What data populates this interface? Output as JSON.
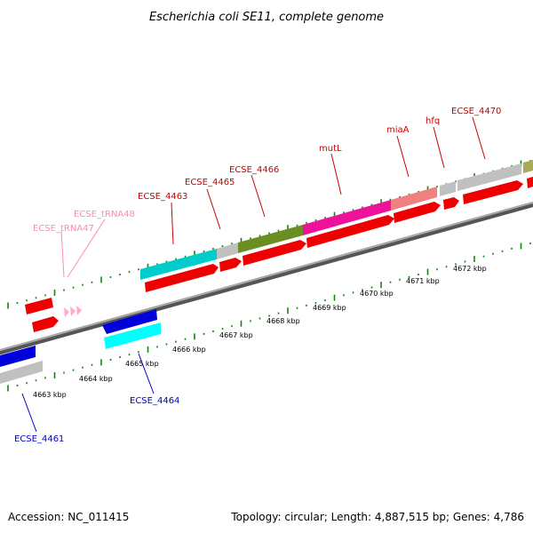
{
  "title": "Escherichia coli SE11, complete genome",
  "footer": {
    "accession": "Accession: NC_011415",
    "summary": "Topology: circular; Length: 4,887,515 bp; Genes: 4,786"
  },
  "colors": {
    "red": "#ff0000",
    "blue": "#0000ff",
    "cyan": "#00cccc",
    "gray": "#c0c0c0",
    "olive": "#6b8e23",
    "magenta": "#ee1199",
    "salmon": "#f08080",
    "khaki": "#aaaa55",
    "pink": "#ffaacc",
    "tick_green": "#0a8a0a",
    "label_red": "#cc0000",
    "label_blue": "#0000cc",
    "label_pink": "#ff88bb"
  },
  "axis_labels": [
    "4663 kbp",
    "4664 kbp",
    "4665 kbp",
    "4666 kbp",
    "4667 kbp",
    "4668 kbp",
    "4669 kbp",
    "4670 kbp",
    "4671 kbp",
    "4672 kbp"
  ],
  "gene_labels": [
    {
      "text": "ECSE_4461",
      "strand": "minus"
    },
    {
      "text": "ECSE_4464",
      "strand": "minus"
    },
    {
      "text": "ECSE_tRNA47",
      "strand": "rna"
    },
    {
      "text": "ECSE_tRNA48",
      "strand": "rna"
    },
    {
      "text": "ECSE_4463",
      "strand": "plus"
    },
    {
      "text": "ECSE_4465",
      "strand": "plus"
    },
    {
      "text": "ECSE_4466",
      "strand": "plus"
    },
    {
      "text": "mutL",
      "strand": "plus"
    },
    {
      "text": "miaA",
      "strand": "plus"
    },
    {
      "text": "hfq",
      "strand": "plus"
    },
    {
      "text": "ECSE_4470",
      "strand": "plus"
    }
  ]
}
